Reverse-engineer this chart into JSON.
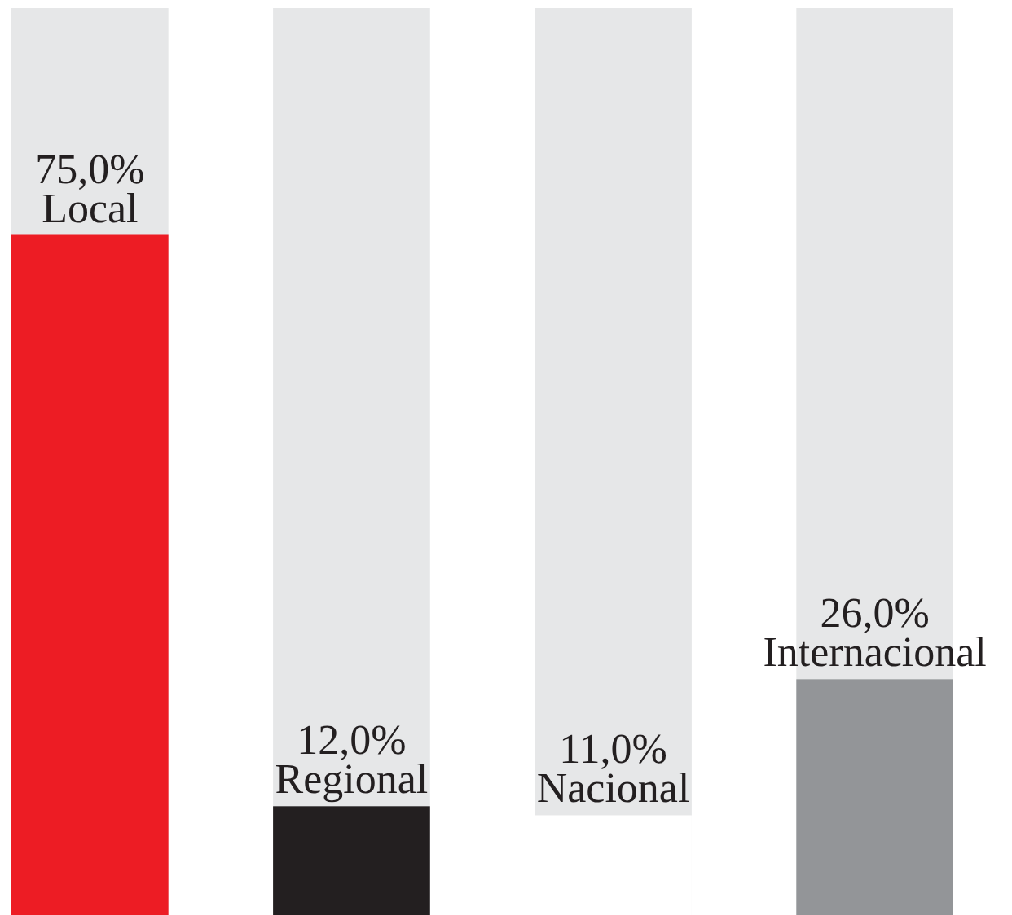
{
  "chart_data": {
    "type": "bar",
    "categories": [
      "Local",
      "Regional",
      "Nacional",
      "Internacional"
    ],
    "values": [
      75,
      12,
      11,
      26
    ],
    "colors": [
      "#ed1c24",
      "#231f20",
      "#ffffff",
      "#939598"
    ],
    "value_labels": [
      "75,0%",
      "12,0%",
      "11,0%",
      "26,0%"
    ],
    "ylim": [
      0,
      100
    ]
  }
}
